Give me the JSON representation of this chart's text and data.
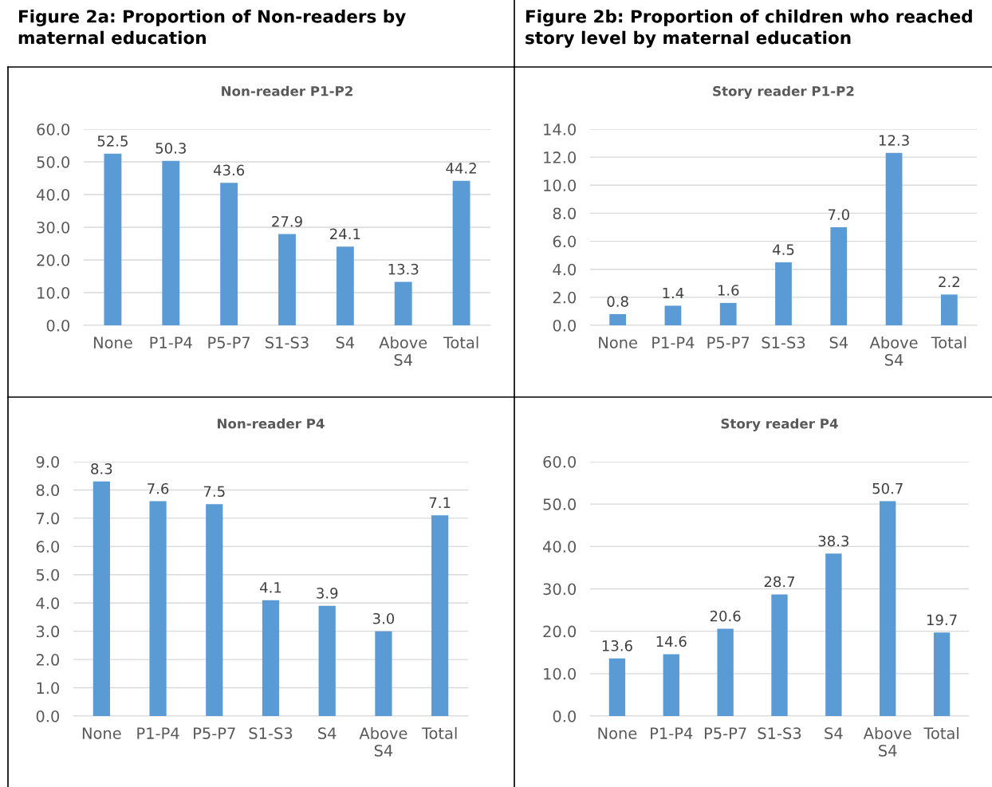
{
  "chart_data": [
    {
      "type": "bar",
      "title": "Non-reader P1-P2",
      "annotations": [
        "Figure 2a: Proportion of Non-readers by maternal education"
      ],
      "categories": [
        "None",
        "P1-P4",
        "P5-P7",
        "S1-S3",
        "S4",
        "Above S4",
        "Total"
      ],
      "series": [
        {
          "color": "#5b9bd5",
          "values": [
            52.5,
            50.3,
            43.6,
            27.9,
            24.1,
            13.3,
            44.2
          ],
          "value_labels": [
            "52.5",
            "50.3",
            "43.6",
            "27.9",
            "24.1",
            "13.3",
            "44.2"
          ]
        }
      ],
      "ylim": [
        0,
        60
      ],
      "yticks": [
        {
          "value": 0,
          "label": "0.0"
        },
        {
          "value": 10,
          "label": "10.0"
        },
        {
          "value": 20,
          "label": "20.0"
        },
        {
          "value": 30,
          "label": "30.0"
        },
        {
          "value": 40,
          "label": "40.0"
        },
        {
          "value": 50,
          "label": "50.0"
        },
        {
          "value": 60,
          "label": "60.0"
        }
      ],
      "grid": "y"
    },
    {
      "type": "bar",
      "title": "Story reader P1-P2",
      "annotations": [
        "Figure 2b: Proportion of children who reached story level by maternal education"
      ],
      "categories": [
        "None",
        "P1-P4",
        "P5-P7",
        "S1-S3",
        "S4",
        "Above S4",
        "Total"
      ],
      "series": [
        {
          "color": "#5b9bd5",
          "values": [
            0.8,
            1.4,
            1.6,
            4.5,
            7.0,
            12.3,
            2.2
          ],
          "value_labels": [
            "0.8",
            "1.4",
            "1.6",
            "4.5",
            "7.0",
            "12.3",
            "2.2"
          ]
        }
      ],
      "ylim": [
        0,
        14
      ],
      "yticks": [
        {
          "value": 0,
          "label": "0.0"
        },
        {
          "value": 2,
          "label": "2.0"
        },
        {
          "value": 4,
          "label": "4.0"
        },
        {
          "value": 6,
          "label": "6.0"
        },
        {
          "value": 8,
          "label": "8.0"
        },
        {
          "value": 10,
          "label": "10.0"
        },
        {
          "value": 12,
          "label": "12.0"
        },
        {
          "value": 14,
          "label": "14.0"
        }
      ],
      "grid": "y"
    },
    {
      "type": "bar",
      "title": "Non-reader P4",
      "categories": [
        "None",
        "P1-P4",
        "P5-P7",
        "S1-S3",
        "S4",
        "Above S4",
        "Total"
      ],
      "series": [
        {
          "color": "#5b9bd5",
          "values": [
            8.3,
            7.6,
            7.5,
            4.1,
            3.9,
            3.0,
            7.1
          ],
          "value_labels": [
            "8.3",
            "7.6",
            "7.5",
            "4.1",
            "3.9",
            "3.0",
            "7.1"
          ]
        }
      ],
      "ylim": [
        0,
        9
      ],
      "yticks": [
        {
          "value": 0,
          "label": "0.0"
        },
        {
          "value": 1,
          "label": "1.0"
        },
        {
          "value": 2,
          "label": "2.0"
        },
        {
          "value": 3,
          "label": "3.0"
        },
        {
          "value": 4,
          "label": "4.0"
        },
        {
          "value": 5,
          "label": "5.0"
        },
        {
          "value": 6,
          "label": "6.0"
        },
        {
          "value": 7,
          "label": "7.0"
        },
        {
          "value": 8,
          "label": "8.0"
        },
        {
          "value": 9,
          "label": "9.0"
        }
      ],
      "grid": "y"
    },
    {
      "type": "bar",
      "title": "Story reader P4",
      "categories": [
        "None",
        "P1-P4",
        "P5-P7",
        "S1-S3",
        "S4",
        "Above S4",
        "Total"
      ],
      "series": [
        {
          "color": "#5b9bd5",
          "values": [
            13.6,
            14.6,
            20.6,
            28.7,
            38.3,
            50.7,
            19.7
          ],
          "value_labels": [
            "13.6",
            "14.6",
            "20.6",
            "28.7",
            "38.3",
            "50.7",
            "19.7"
          ]
        }
      ],
      "ylim": [
        0,
        60
      ],
      "yticks": [
        {
          "value": 0,
          "label": "0.0"
        },
        {
          "value": 10,
          "label": "10.0"
        },
        {
          "value": 20,
          "label": "20.0"
        },
        {
          "value": 30,
          "label": "30.0"
        },
        {
          "value": 40,
          "label": "40.0"
        },
        {
          "value": 50,
          "label": "50.0"
        },
        {
          "value": 60,
          "label": "60.0"
        }
      ],
      "grid": "y"
    }
  ]
}
